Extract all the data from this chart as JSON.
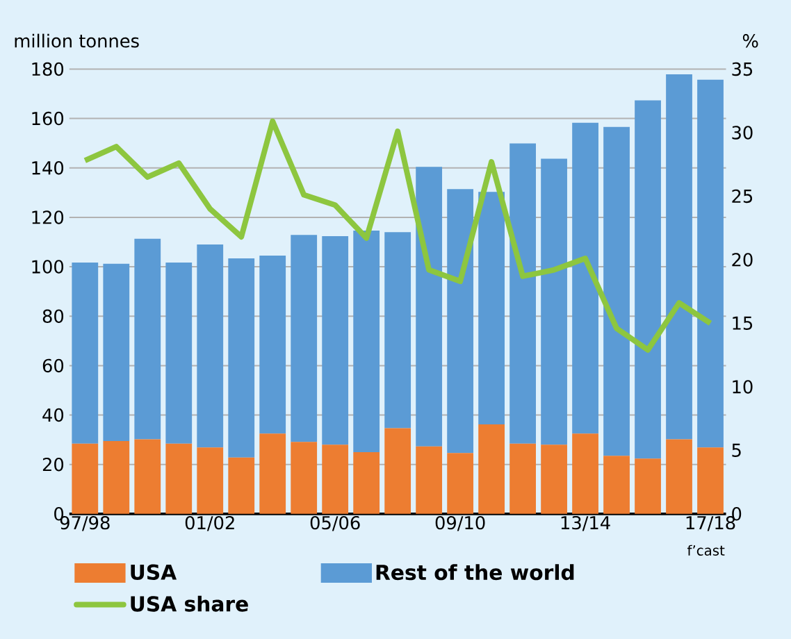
{
  "chart_data": {
    "type": "bar",
    "stacked": true,
    "categories": [
      "97/98",
      null,
      null,
      null,
      "01/02",
      null,
      null,
      null,
      "05/06",
      null,
      null,
      null,
      "09/10",
      null,
      null,
      null,
      "13/14",
      null,
      null,
      null,
      "17/18"
    ],
    "series": [
      {
        "name": "USA",
        "color": "#ed7d31",
        "values": [
          28.4,
          29.5,
          30.2,
          28.4,
          26.9,
          22.8,
          32.5,
          29.1,
          28.0,
          25.0,
          34.7,
          27.3,
          24.6,
          36.2,
          28.4,
          28.0,
          32.5,
          23.5,
          22.4,
          30.2,
          26.9
        ]
      },
      {
        "name": "Rest of the world",
        "color": "#5b9bd5",
        "values": [
          73.3,
          71.7,
          81.1,
          73.3,
          82.1,
          80.6,
          72.0,
          83.8,
          84.4,
          89.6,
          79.3,
          113.1,
          106.8,
          94.1,
          121.5,
          115.7,
          125.8,
          133.1,
          144.9,
          147.7,
          148.8
        ]
      },
      {
        "name": "USA share",
        "type": "line",
        "axis": "y2",
        "color": "#8dc63f",
        "values": [
          27.8,
          28.9,
          26.5,
          27.6,
          24.0,
          21.8,
          30.9,
          25.1,
          24.3,
          21.7,
          30.1,
          19.2,
          18.3,
          27.7,
          18.7,
          19.2,
          20.1,
          14.6,
          12.9,
          16.6,
          15.0
        ]
      }
    ],
    "ylabel": "million tonnes",
    "y2label": "%",
    "ylim": [
      0,
      180
    ],
    "yticks": [
      0,
      20,
      40,
      60,
      80,
      100,
      120,
      140,
      160,
      180
    ],
    "y2lim": [
      0,
      35
    ],
    "y2ticks": [
      0,
      5,
      10,
      15,
      20,
      25,
      30,
      35
    ],
    "grid": "y",
    "legend": "bottom",
    "annotations": [
      "f’cast"
    ]
  }
}
